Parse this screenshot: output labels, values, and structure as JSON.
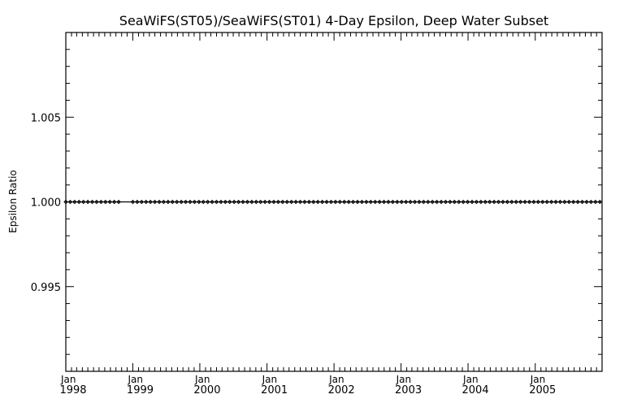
{
  "chart_data": {
    "type": "scatter",
    "title": "SeaWiFS(ST05)/SeaWiFS(ST01) 4-Day Epsilon, Deep Water Subset",
    "ylabel": "Epsilon Ratio",
    "xlabel": "",
    "ylim": [
      0.99,
      1.01
    ],
    "yticks": [
      {
        "value": 0.995,
        "label": "0.995"
      },
      {
        "value": 1.0,
        "label": "1.000"
      },
      {
        "value": 1.005,
        "label": "1.005"
      }
    ],
    "xlim": [
      "1998-01-01",
      "2005-12-31"
    ],
    "xticks": [
      {
        "month": "Jan",
        "year": "1998",
        "date": "1998-01-01"
      },
      {
        "month": "Jan",
        "year": "1999",
        "date": "1999-01-01"
      },
      {
        "month": "Jan",
        "year": "2000",
        "date": "2000-01-01"
      },
      {
        "month": "Jan",
        "year": "2001",
        "date": "2001-01-01"
      },
      {
        "month": "Jan",
        "year": "2002",
        "date": "2002-01-01"
      },
      {
        "month": "Jan",
        "year": "2003",
        "date": "2003-01-01"
      },
      {
        "month": "Jan",
        "year": "2004",
        "date": "2004-01-01"
      },
      {
        "month": "Jan",
        "year": "2005",
        "date": "2005-01-01"
      }
    ],
    "reference_line": 1.0,
    "grid": false,
    "series": [
      {
        "points": [
          {
            "x": "1998-01-01",
            "y": 1.0
          },
          {
            "x": "1998-01-25",
            "y": 1.0
          },
          {
            "x": "1998-02-18",
            "y": 1.0
          },
          {
            "x": "1998-03-14",
            "y": 1.0
          },
          {
            "x": "1998-04-07",
            "y": 1.0
          },
          {
            "x": "1998-05-01",
            "y": 1.0
          },
          {
            "x": "1998-05-25",
            "y": 1.0
          },
          {
            "x": "1998-06-18",
            "y": 1.0
          },
          {
            "x": "1998-07-12",
            "y": 1.0
          },
          {
            "x": "1998-08-05",
            "y": 1.0
          },
          {
            "x": "1998-08-29",
            "y": 1.0
          },
          {
            "x": "1998-09-22",
            "y": 1.0
          },
          {
            "x": "1998-10-16",
            "y": 1.0
          },
          {
            "x": "1999-01-01",
            "y": 1.0
          },
          {
            "x": "1999-01-25",
            "y": 1.0
          },
          {
            "x": "1999-02-18",
            "y": 1.0
          },
          {
            "x": "1999-03-14",
            "y": 1.0
          },
          {
            "x": "1999-04-07",
            "y": 1.0
          },
          {
            "x": "1999-05-01",
            "y": 1.0
          },
          {
            "x": "1999-05-25",
            "y": 1.0
          },
          {
            "x": "1999-06-18",
            "y": 1.0
          },
          {
            "x": "1999-07-12",
            "y": 1.0
          },
          {
            "x": "1999-08-05",
            "y": 1.0
          },
          {
            "x": "1999-08-29",
            "y": 1.0
          },
          {
            "x": "1999-09-22",
            "y": 1.0
          },
          {
            "x": "1999-10-16",
            "y": 1.0
          },
          {
            "x": "1999-11-09",
            "y": 1.0
          },
          {
            "x": "1999-12-03",
            "y": 1.0
          },
          {
            "x": "1999-12-27",
            "y": 1.0
          },
          {
            "x": "2000-01-20",
            "y": 1.0
          },
          {
            "x": "2000-02-13",
            "y": 1.0
          },
          {
            "x": "2000-03-08",
            "y": 1.0
          },
          {
            "x": "2000-04-01",
            "y": 1.0
          },
          {
            "x": "2000-04-25",
            "y": 1.0
          },
          {
            "x": "2000-05-19",
            "y": 1.0
          },
          {
            "x": "2000-06-12",
            "y": 1.0
          },
          {
            "x": "2000-07-06",
            "y": 1.0
          },
          {
            "x": "2000-07-30",
            "y": 1.0
          },
          {
            "x": "2000-08-23",
            "y": 1.0
          },
          {
            "x": "2000-09-16",
            "y": 1.0
          },
          {
            "x": "2000-10-10",
            "y": 1.0
          },
          {
            "x": "2000-11-03",
            "y": 1.0
          },
          {
            "x": "2000-11-27",
            "y": 1.0
          },
          {
            "x": "2000-12-21",
            "y": 1.0
          },
          {
            "x": "2001-01-14",
            "y": 1.0
          },
          {
            "x": "2001-02-07",
            "y": 1.0
          },
          {
            "x": "2001-03-03",
            "y": 1.0
          },
          {
            "x": "2001-03-27",
            "y": 1.0
          },
          {
            "x": "2001-04-20",
            "y": 1.0
          },
          {
            "x": "2001-05-14",
            "y": 1.0
          },
          {
            "x": "2001-06-07",
            "y": 1.0
          },
          {
            "x": "2001-07-01",
            "y": 1.0
          },
          {
            "x": "2001-07-25",
            "y": 1.0
          },
          {
            "x": "2001-08-18",
            "y": 1.0
          },
          {
            "x": "2001-09-11",
            "y": 1.0
          },
          {
            "x": "2001-10-05",
            "y": 1.0
          },
          {
            "x": "2001-10-29",
            "y": 1.0
          },
          {
            "x": "2001-11-22",
            "y": 1.0
          },
          {
            "x": "2001-12-16",
            "y": 1.0
          },
          {
            "x": "2002-01-09",
            "y": 1.0
          },
          {
            "x": "2002-02-02",
            "y": 1.0
          },
          {
            "x": "2002-02-26",
            "y": 1.0
          },
          {
            "x": "2002-03-22",
            "y": 1.0
          },
          {
            "x": "2002-04-15",
            "y": 1.0
          },
          {
            "x": "2002-05-09",
            "y": 1.0
          },
          {
            "x": "2002-06-02",
            "y": 1.0
          },
          {
            "x": "2002-06-26",
            "y": 1.0
          },
          {
            "x": "2002-07-20",
            "y": 1.0
          },
          {
            "x": "2002-08-13",
            "y": 1.0
          },
          {
            "x": "2002-09-06",
            "y": 1.0
          },
          {
            "x": "2002-09-30",
            "y": 1.0
          },
          {
            "x": "2002-10-24",
            "y": 1.0
          },
          {
            "x": "2002-11-17",
            "y": 1.0
          },
          {
            "x": "2002-12-11",
            "y": 1.0
          },
          {
            "x": "2003-01-04",
            "y": 1.0
          },
          {
            "x": "2003-01-28",
            "y": 1.0
          },
          {
            "x": "2003-02-21",
            "y": 1.0
          },
          {
            "x": "2003-03-17",
            "y": 1.0
          },
          {
            "x": "2003-04-10",
            "y": 1.0
          },
          {
            "x": "2003-05-04",
            "y": 1.0
          },
          {
            "x": "2003-05-28",
            "y": 1.0
          },
          {
            "x": "2003-06-21",
            "y": 1.0
          },
          {
            "x": "2003-07-15",
            "y": 1.0
          },
          {
            "x": "2003-08-08",
            "y": 1.0
          },
          {
            "x": "2003-09-01",
            "y": 1.0
          },
          {
            "x": "2003-09-25",
            "y": 1.0
          },
          {
            "x": "2003-10-19",
            "y": 1.0
          },
          {
            "x": "2003-11-12",
            "y": 1.0
          },
          {
            "x": "2003-12-06",
            "y": 1.0
          },
          {
            "x": "2003-12-30",
            "y": 1.0
          },
          {
            "x": "2004-01-23",
            "y": 1.0
          },
          {
            "x": "2004-02-16",
            "y": 1.0
          },
          {
            "x": "2004-03-11",
            "y": 1.0
          },
          {
            "x": "2004-04-04",
            "y": 1.0
          },
          {
            "x": "2004-04-28",
            "y": 1.0
          },
          {
            "x": "2004-05-22",
            "y": 1.0
          },
          {
            "x": "2004-06-15",
            "y": 1.0
          },
          {
            "x": "2004-07-09",
            "y": 1.0
          },
          {
            "x": "2004-08-02",
            "y": 1.0
          },
          {
            "x": "2004-08-26",
            "y": 1.0
          },
          {
            "x": "2004-09-19",
            "y": 1.0
          },
          {
            "x": "2004-10-13",
            "y": 1.0
          },
          {
            "x": "2004-11-06",
            "y": 1.0
          },
          {
            "x": "2004-11-30",
            "y": 1.0
          },
          {
            "x": "2004-12-24",
            "y": 1.0
          },
          {
            "x": "2005-01-17",
            "y": 1.0
          },
          {
            "x": "2005-02-10",
            "y": 1.0
          },
          {
            "x": "2005-03-06",
            "y": 1.0
          },
          {
            "x": "2005-03-30",
            "y": 1.0
          },
          {
            "x": "2005-04-23",
            "y": 1.0
          },
          {
            "x": "2005-05-17",
            "y": 1.0
          },
          {
            "x": "2005-06-10",
            "y": 1.0
          },
          {
            "x": "2005-07-04",
            "y": 1.0
          },
          {
            "x": "2005-07-28",
            "y": 1.0
          },
          {
            "x": "2005-08-21",
            "y": 1.0
          },
          {
            "x": "2005-09-14",
            "y": 1.0
          },
          {
            "x": "2005-10-08",
            "y": 1.0
          },
          {
            "x": "2005-11-01",
            "y": 1.0
          },
          {
            "x": "2005-11-25",
            "y": 1.0
          },
          {
            "x": "2005-12-19",
            "y": 1.0
          }
        ]
      }
    ]
  }
}
